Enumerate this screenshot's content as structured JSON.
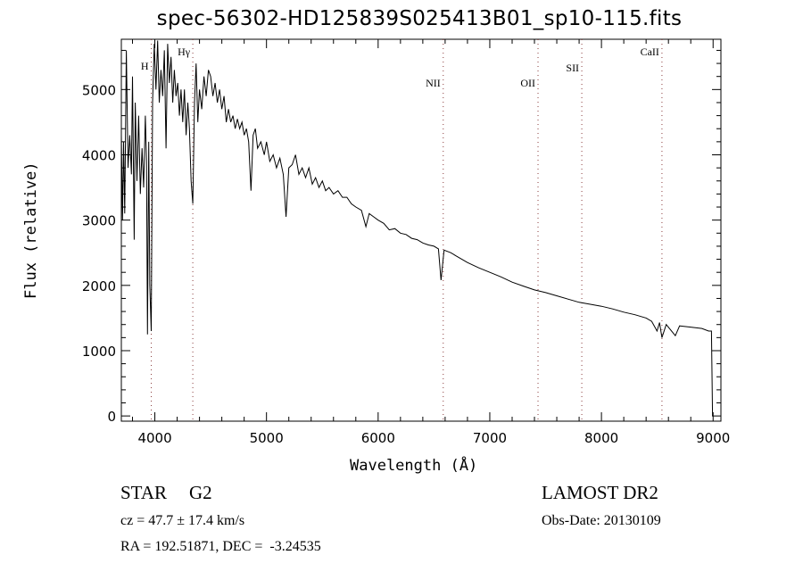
{
  "chart_data": {
    "type": "line",
    "title": "spec-56302-HD125839S025413B01_sp10-115.fits",
    "xlabel": "Wavelength (Å)",
    "ylabel": "Flux (relative)",
    "xlim": [
      3700,
      9070
    ],
    "ylim": [
      -80,
      5770
    ],
    "xticks": [
      4000,
      5000,
      6000,
      7000,
      8000,
      9000
    ],
    "yticks": [
      0,
      1000,
      2000,
      3000,
      4000,
      5000
    ],
    "grid": false,
    "line_markers": [
      {
        "label": "H",
        "x": 3968
      },
      {
        "label": "Hγ",
        "x": 4340
      },
      {
        "label": "NII",
        "x": 6583
      },
      {
        "label": "OII",
        "x": 7432
      },
      {
        "label": "SII",
        "x": 7824
      },
      {
        "label": "CaII",
        "x": 8542
      }
    ],
    "series": [
      {
        "name": "spectrum",
        "x": [
          3700,
          3710,
          3720,
          3730,
          3745,
          3760,
          3775,
          3790,
          3800,
          3815,
          3825,
          3840,
          3855,
          3870,
          3885,
          3900,
          3915,
          3925,
          3934,
          3945,
          3955,
          3968,
          3980,
          3995,
          4010,
          4025,
          4040,
          4055,
          4070,
          4085,
          4100,
          4115,
          4130,
          4145,
          4160,
          4175,
          4190,
          4205,
          4220,
          4235,
          4250,
          4265,
          4280,
          4295,
          4310,
          4325,
          4340,
          4355,
          4370,
          4385,
          4400,
          4420,
          4440,
          4460,
          4480,
          4500,
          4520,
          4540,
          4560,
          4580,
          4600,
          4620,
          4640,
          4660,
          4680,
          4700,
          4720,
          4740,
          4760,
          4780,
          4800,
          4820,
          4840,
          4861,
          4880,
          4900,
          4920,
          4950,
          4980,
          5000,
          5030,
          5060,
          5090,
          5120,
          5150,
          5175,
          5200,
          5230,
          5260,
          5290,
          5320,
          5350,
          5380,
          5410,
          5440,
          5470,
          5500,
          5530,
          5560,
          5600,
          5640,
          5680,
          5720,
          5760,
          5800,
          5850,
          5890,
          5920,
          5960,
          6000,
          6050,
          6100,
          6150,
          6200,
          6250,
          6300,
          6350,
          6400,
          6450,
          6500,
          6540,
          6563,
          6590,
          6650,
          6700,
          6800,
          6900,
          7000,
          7100,
          7200,
          7300,
          7400,
          7500,
          7600,
          7700,
          7800,
          7900,
          8000,
          8100,
          8200,
          8300,
          8400,
          8450,
          8498,
          8520,
          8542,
          8580,
          8662,
          8700,
          8800,
          8900,
          8960,
          8985,
          8995
        ],
        "y": [
          4300,
          3000,
          4200,
          3100,
          5600,
          3800,
          4300,
          3700,
          5200,
          2700,
          4800,
          3600,
          4600,
          3400,
          4100,
          3500,
          4600,
          3900,
          1250,
          4200,
          2000,
          1300,
          4800,
          5700,
          5000,
          5750,
          4800,
          5300,
          4900,
          5600,
          4100,
          5700,
          5100,
          5500,
          4800,
          5300,
          4900,
          5100,
          4600,
          5000,
          4500,
          5000,
          4300,
          4800,
          4400,
          3600,
          3250,
          4800,
          5400,
          4500,
          5000,
          4700,
          5200,
          4900,
          5300,
          5200,
          4900,
          5100,
          4800,
          5000,
          4700,
          4900,
          4500,
          4700,
          4500,
          4600,
          4400,
          4550,
          4400,
          4500,
          4300,
          4400,
          4200,
          3450,
          4300,
          4400,
          4100,
          4200,
          4000,
          4200,
          3900,
          4000,
          3800,
          3950,
          3700,
          3050,
          3800,
          3850,
          4000,
          3700,
          3800,
          3650,
          3800,
          3550,
          3650,
          3500,
          3600,
          3450,
          3500,
          3400,
          3450,
          3350,
          3350,
          3250,
          3200,
          3150,
          2900,
          3100,
          3050,
          3000,
          2950,
          2850,
          2870,
          2800,
          2780,
          2720,
          2700,
          2650,
          2620,
          2600,
          2560,
          2080,
          2540,
          2500,
          2450,
          2350,
          2270,
          2200,
          2130,
          2050,
          1990,
          1930,
          1890,
          1840,
          1790,
          1740,
          1710,
          1680,
          1640,
          1590,
          1550,
          1500,
          1450,
          1300,
          1430,
          1200,
          1400,
          1230,
          1380,
          1360,
          1340,
          1300,
          1300,
          0
        ]
      }
    ]
  },
  "info": {
    "class": "STAR",
    "subclass": "G2",
    "survey": "LAMOST DR2",
    "cz": "cz = 47.7 ± 17.4 km/s",
    "obs_date": "Obs-Date: 20130109",
    "coords": "RA = 192.51871, DEC =  -3.24535"
  }
}
